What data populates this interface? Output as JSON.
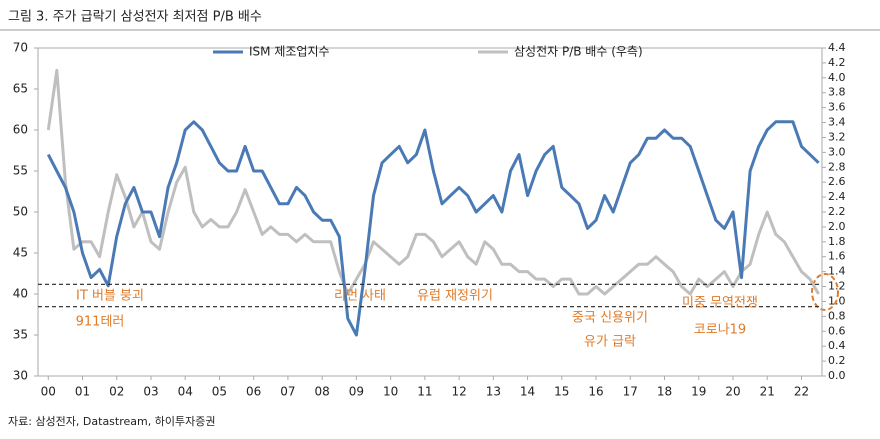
{
  "chart_data": {
    "type": "line",
    "title": "그림 3. 주가 급락기 삼성전자 최저점 P/B 배수",
    "source": "자료: 삼성전자, Datastream, 하이투자증권",
    "x": [
      2000,
      2000.25,
      2000.5,
      2000.75,
      2001,
      2001.25,
      2001.5,
      2001.75,
      2002,
      2002.25,
      2002.5,
      2002.75,
      2003,
      2003.25,
      2003.5,
      2003.75,
      2004,
      2004.25,
      2004.5,
      2004.75,
      2005,
      2005.25,
      2005.5,
      2005.75,
      2006,
      2006.25,
      2006.5,
      2006.75,
      2007,
      2007.25,
      2007.5,
      2007.75,
      2008,
      2008.25,
      2008.5,
      2008.75,
      2009,
      2009.25,
      2009.5,
      2009.75,
      2010,
      2010.25,
      2010.5,
      2010.75,
      2011,
      2011.25,
      2011.5,
      2011.75,
      2012,
      2012.25,
      2012.5,
      2012.75,
      2013,
      2013.25,
      2013.5,
      2013.75,
      2014,
      2014.25,
      2014.5,
      2014.75,
      2015,
      2015.25,
      2015.5,
      2015.75,
      2016,
      2016.25,
      2016.5,
      2016.75,
      2017,
      2017.25,
      2017.5,
      2017.75,
      2018,
      2018.25,
      2018.5,
      2018.75,
      2019,
      2019.25,
      2019.5,
      2019.75,
      2020,
      2020.25,
      2020.5,
      2020.75,
      2021,
      2021.25,
      2021.5,
      2021.75,
      2022,
      2022.25,
      2022.5
    ],
    "series": [
      {
        "name": "ISM 제조업지수",
        "color": "#4a7ab5",
        "axis": "y",
        "values": [
          57,
          55,
          53,
          50,
          45,
          42,
          43,
          41,
          47,
          51,
          53,
          50,
          50,
          47,
          53,
          56,
          60,
          61,
          60,
          58,
          56,
          55,
          55,
          58,
          55,
          55,
          53,
          51,
          51,
          53,
          52,
          50,
          49,
          49,
          47,
          37,
          35,
          43,
          52,
          56,
          57,
          58,
          56,
          57,
          60,
          55,
          51,
          52,
          53,
          52,
          50,
          51,
          52,
          50,
          55,
          57,
          52,
          55,
          57,
          58,
          53,
          52,
          51,
          48,
          49,
          52,
          50,
          53,
          56,
          57,
          59,
          59,
          60,
          59,
          59,
          58,
          55,
          52,
          49,
          48,
          50,
          42,
          55,
          58,
          60,
          61,
          61,
          61,
          58,
          57,
          56
        ]
      },
      {
        "name": "삼성전자 P/B 배수 (우측)",
        "color": "#bfbfbf",
        "axis": "y2",
        "values": [
          3.3,
          4.1,
          2.6,
          1.7,
          1.8,
          1.8,
          1.6,
          2.2,
          2.7,
          2.4,
          2.0,
          2.2,
          1.8,
          1.7,
          2.2,
          2.6,
          2.8,
          2.2,
          2.0,
          2.1,
          2.0,
          2.0,
          2.2,
          2.5,
          2.2,
          1.9,
          2.0,
          1.9,
          1.9,
          1.8,
          1.9,
          1.8,
          1.8,
          1.8,
          1.4,
          1.1,
          1.3,
          1.5,
          1.8,
          1.7,
          1.6,
          1.5,
          1.6,
          1.9,
          1.9,
          1.8,
          1.6,
          1.7,
          1.8,
          1.6,
          1.5,
          1.8,
          1.7,
          1.5,
          1.5,
          1.4,
          1.4,
          1.3,
          1.3,
          1.2,
          1.3,
          1.3,
          1.1,
          1.1,
          1.2,
          1.1,
          1.2,
          1.3,
          1.4,
          1.5,
          1.5,
          1.6,
          1.5,
          1.4,
          1.2,
          1.1,
          1.3,
          1.2,
          1.3,
          1.4,
          1.2,
          1.4,
          1.5,
          1.9,
          2.2,
          1.9,
          1.8,
          1.6,
          1.4,
          1.3,
          1.1
        ]
      }
    ],
    "xlim": [
      1999.7,
      2022.6
    ],
    "xticks": [
      {
        "value": 2000,
        "label": "00"
      },
      {
        "value": 2001,
        "label": "01"
      },
      {
        "value": 2002,
        "label": "02"
      },
      {
        "value": 2003,
        "label": "03"
      },
      {
        "value": 2004,
        "label": "04"
      },
      {
        "value": 2005,
        "label": "05"
      },
      {
        "value": 2006,
        "label": "06"
      },
      {
        "value": 2007,
        "label": "07"
      },
      {
        "value": 2008,
        "label": "08"
      },
      {
        "value": 2009,
        "label": "09"
      },
      {
        "value": 2010,
        "label": "10"
      },
      {
        "value": 2011,
        "label": "11"
      },
      {
        "value": 2012,
        "label": "12"
      },
      {
        "value": 2013,
        "label": "13"
      },
      {
        "value": 2014,
        "label": "14"
      },
      {
        "value": 2015,
        "label": "15"
      },
      {
        "value": 2016,
        "label": "16"
      },
      {
        "value": 2017,
        "label": "17"
      },
      {
        "value": 2018,
        "label": "18"
      },
      {
        "value": 2019,
        "label": "19"
      },
      {
        "value": 2020,
        "label": "20"
      },
      {
        "value": 2021,
        "label": "21"
      },
      {
        "value": 2022,
        "label": "22"
      }
    ],
    "ylim": [
      30,
      70
    ],
    "yticks": [
      30,
      35,
      40,
      45,
      50,
      55,
      60,
      65,
      70
    ],
    "y2lim": [
      0,
      4.4
    ],
    "y2ticks": [
      {
        "value": 0,
        "label": "0.0"
      },
      0.2,
      0.4,
      0.6,
      0.8,
      {
        "value": 1,
        "label": "1.0"
      },
      1.2,
      1.4,
      1.6,
      1.8,
      {
        "value": 2,
        "label": "2.0"
      },
      2.2,
      2.4,
      2.6,
      2.8,
      {
        "value": 3,
        "label": "3.0"
      },
      3.2,
      3.4,
      3.6,
      3.8,
      {
        "value": 4,
        "label": "4.0"
      },
      4.2,
      4.4
    ],
    "grid": false,
    "legend": "top",
    "reference_lines": [
      {
        "value": 1.23,
        "axis": "y2"
      },
      {
        "value": 0.93,
        "axis": "y2"
      }
    ],
    "annotation_color": "#e07b28",
    "annotations": [
      "IT 버블 붕괴",
      "911테러",
      "리먼 사태",
      "유럽 재정위기",
      "중국 신용위기",
      "유가 급락",
      "미중 무역전쟁",
      "코로나19"
    ]
  }
}
